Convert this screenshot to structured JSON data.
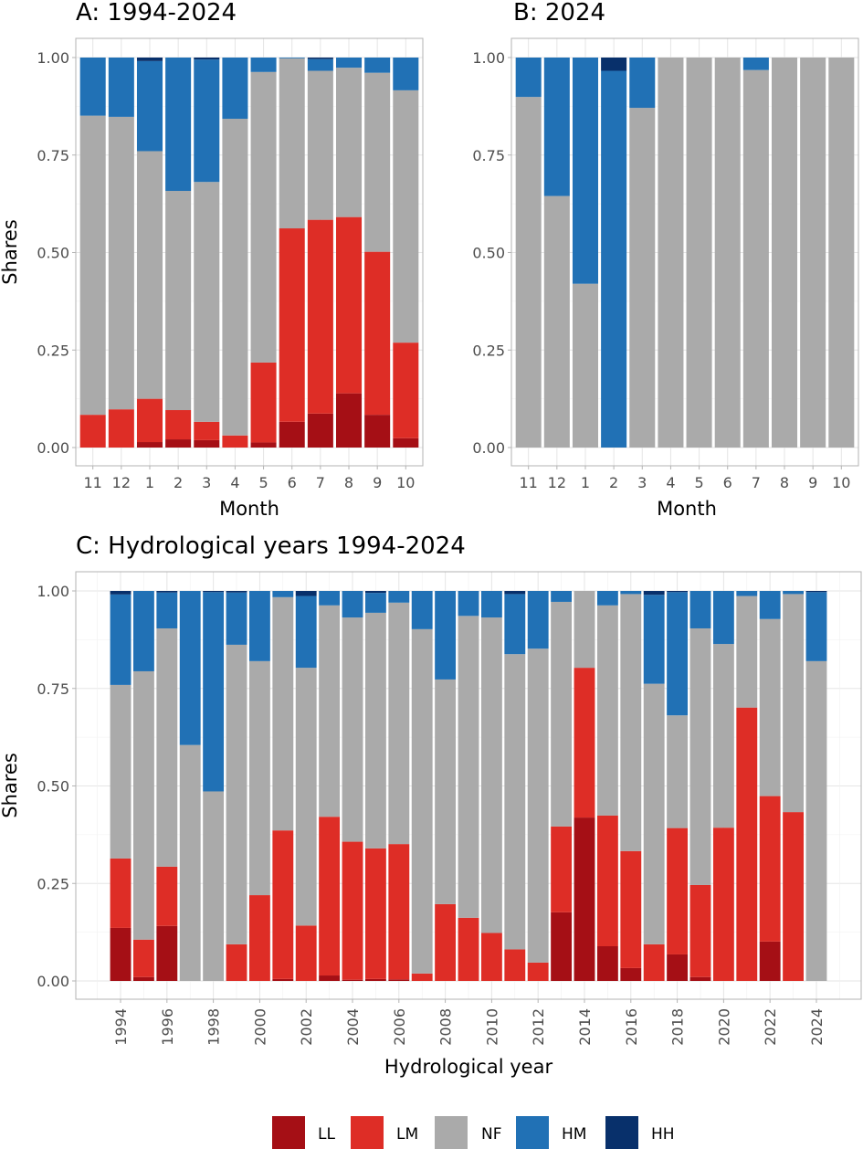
{
  "figure": {
    "legend": {
      "placement": "bottom",
      "items": [
        {
          "key": "LL",
          "label": "LL",
          "color": "#a50f15"
        },
        {
          "key": "LM",
          "label": "LM",
          "color": "#de2d26"
        },
        {
          "key": "NF",
          "label": "NF",
          "color": "#aaaaaa"
        },
        {
          "key": "HM",
          "label": "HM",
          "color": "#2171b5"
        },
        {
          "key": "HH",
          "label": "HH",
          "color": "#08306b"
        }
      ]
    }
  },
  "chart_data": [
    {
      "id": "A",
      "type": "bar",
      "stacked": true,
      "title": "A: 1994-2024",
      "xlabel": "Month",
      "ylabel": "Shares",
      "ylim": [
        0,
        1
      ],
      "yticks": [
        "0.00",
        "0.25",
        "0.50",
        "0.75",
        "1.00"
      ],
      "grid": true,
      "categories": [
        "11",
        "12",
        "1",
        "2",
        "3",
        "4",
        "5",
        "6",
        "7",
        "8",
        "9",
        "10"
      ],
      "series": [
        {
          "name": "LL",
          "values": [
            0.0,
            0.0,
            0.014,
            0.021,
            0.019,
            0.0,
            0.013,
            0.066,
            0.087,
            0.139,
            0.084,
            0.024
          ]
        },
        {
          "name": "LM",
          "values": [
            0.084,
            0.098,
            0.111,
            0.075,
            0.047,
            0.031,
            0.205,
            0.496,
            0.497,
            0.452,
            0.418,
            0.245
          ]
        },
        {
          "name": "NF",
          "values": [
            0.767,
            0.75,
            0.635,
            0.562,
            0.615,
            0.812,
            0.745,
            0.436,
            0.382,
            0.383,
            0.459,
            0.647
          ]
        },
        {
          "name": "HM",
          "values": [
            0.149,
            0.152,
            0.231,
            0.342,
            0.314,
            0.157,
            0.037,
            0.002,
            0.03,
            0.026,
            0.039,
            0.084
          ]
        },
        {
          "name": "HH",
          "values": [
            0.0,
            0.0,
            0.009,
            0.0,
            0.005,
            0.0,
            0.0,
            0.0,
            0.004,
            0.0,
            0.0,
            0.0
          ]
        }
      ]
    },
    {
      "id": "B",
      "type": "bar",
      "stacked": true,
      "title": "B: 2024",
      "xlabel": "Month",
      "ylabel": "",
      "ylim": [
        0,
        1
      ],
      "yticks": [
        "0.00",
        "0.25",
        "0.50",
        "0.75",
        "1.00"
      ],
      "grid": true,
      "categories": [
        "11",
        "12",
        "1",
        "2",
        "3",
        "4",
        "5",
        "6",
        "7",
        "8",
        "9",
        "10"
      ],
      "series": [
        {
          "name": "LL",
          "values": [
            0,
            0,
            0,
            0,
            0,
            0,
            0,
            0,
            0,
            0,
            0,
            0
          ]
        },
        {
          "name": "LM",
          "values": [
            0,
            0,
            0,
            0,
            0,
            0,
            0,
            0,
            0,
            0,
            0,
            0
          ]
        },
        {
          "name": "NF",
          "values": [
            0.899,
            0.645,
            0.42,
            0.0,
            0.871,
            1.0,
            1.0,
            1.0,
            0.968,
            1.0,
            1.0,
            1.0
          ]
        },
        {
          "name": "HM",
          "values": [
            0.101,
            0.355,
            0.58,
            0.966,
            0.129,
            0.0,
            0.0,
            0.0,
            0.032,
            0.0,
            0.0,
            0.0
          ]
        },
        {
          "name": "HH",
          "values": [
            0.0,
            0.0,
            0.0,
            0.034,
            0.0,
            0.0,
            0.0,
            0.0,
            0.0,
            0.0,
            0.0,
            0.0
          ]
        }
      ]
    },
    {
      "id": "C",
      "type": "bar",
      "stacked": true,
      "title": "C: Hydrological years 1994-2024",
      "xlabel": "Hydrological year",
      "ylabel": "Shares",
      "ylim": [
        0,
        1
      ],
      "xlim": [
        1992.07,
        2025.93
      ],
      "yticks": [
        "0.00",
        "0.25",
        "0.50",
        "0.75",
        "1.00"
      ],
      "xticks": [
        "1994",
        "1996",
        "1998",
        "2000",
        "2002",
        "2004",
        "2006",
        "2008",
        "2010",
        "2012",
        "2014",
        "2016",
        "2018",
        "2020",
        "2022",
        "2024"
      ],
      "grid": true,
      "categories": [
        1994,
        1995,
        1996,
        1997,
        1998,
        1999,
        2000,
        2001,
        2002,
        2003,
        2004,
        2005,
        2006,
        2007,
        2008,
        2009,
        2010,
        2011,
        2012,
        2013,
        2014,
        2015,
        2016,
        2017,
        2018,
        2019,
        2020,
        2021,
        2022,
        2023,
        2024
      ],
      "series": [
        {
          "name": "LL",
          "values": [
            0.136,
            0.01,
            0.141,
            0.0,
            0.0,
            0.0,
            0.0,
            0.005,
            0.0,
            0.014,
            0.003,
            0.005,
            0.004,
            0.0,
            0.0,
            0.0,
            0.0,
            0.0,
            0.0,
            0.176,
            0.419,
            0.089,
            0.033,
            0.0,
            0.068,
            0.01,
            0.0,
            0.0,
            0.101,
            0.0,
            0.0
          ]
        },
        {
          "name": "LM",
          "values": [
            0.178,
            0.096,
            0.152,
            0.0,
            0.0,
            0.094,
            0.22,
            0.381,
            0.142,
            0.407,
            0.354,
            0.335,
            0.347,
            0.019,
            0.197,
            0.162,
            0.123,
            0.081,
            0.047,
            0.22,
            0.384,
            0.335,
            0.3,
            0.094,
            0.324,
            0.236,
            0.393,
            0.701,
            0.373,
            0.433,
            0.0
          ]
        },
        {
          "name": "NF",
          "values": [
            0.445,
            0.688,
            0.611,
            0.605,
            0.486,
            0.768,
            0.6,
            0.598,
            0.661,
            0.542,
            0.575,
            0.604,
            0.619,
            0.883,
            0.576,
            0.774,
            0.809,
            0.757,
            0.805,
            0.576,
            0.197,
            0.539,
            0.659,
            0.668,
            0.289,
            0.658,
            0.471,
            0.286,
            0.454,
            0.559,
            0.82
          ]
        },
        {
          "name": "HM",
          "values": [
            0.232,
            0.206,
            0.092,
            0.395,
            0.511,
            0.134,
            0.18,
            0.016,
            0.184,
            0.037,
            0.068,
            0.051,
            0.03,
            0.098,
            0.227,
            0.064,
            0.068,
            0.154,
            0.148,
            0.028,
            0.0,
            0.037,
            0.008,
            0.228,
            0.316,
            0.096,
            0.136,
            0.013,
            0.072,
            0.008,
            0.177
          ]
        },
        {
          "name": "HH",
          "values": [
            0.009,
            0.0,
            0.004,
            0.0,
            0.003,
            0.004,
            0.0,
            0.0,
            0.013,
            0.0,
            0.0,
            0.005,
            0.0,
            0.0,
            0.0,
            0.0,
            0.0,
            0.008,
            0.0,
            0.0,
            0.0,
            0.0,
            0.0,
            0.01,
            0.003,
            0.0,
            0.0,
            0.0,
            0.0,
            0.0,
            0.003
          ]
        }
      ]
    }
  ]
}
